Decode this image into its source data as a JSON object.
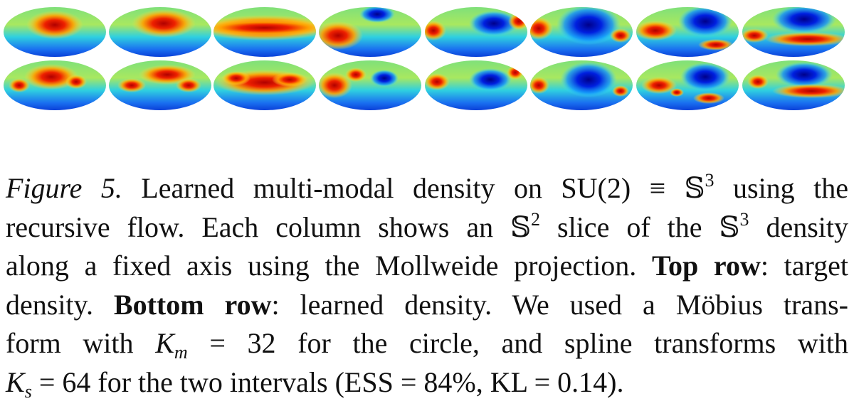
{
  "caption": {
    "lines": [
      [
        {
          "text": "Figure 5.",
          "style": "italic"
        },
        {
          "text": " Learned multi-modal density on SU(2) ≡ 𝕊",
          "style": "normal"
        },
        {
          "text": "3",
          "style": "sup"
        },
        {
          "text": " using the",
          "style": "normal"
        }
      ],
      [
        {
          "text": "recursive flow. Each column shows an 𝕊",
          "style": "normal"
        },
        {
          "text": "2",
          "style": "sup"
        },
        {
          "text": " slice of the 𝕊",
          "style": "normal"
        },
        {
          "text": "3",
          "style": "sup"
        },
        {
          "text": " density",
          "style": "normal"
        }
      ],
      [
        {
          "text": "along a fixed axis using the Mollweide projection. ",
          "style": "normal"
        },
        {
          "text": "Top row",
          "style": "bold"
        },
        {
          "text": ": target",
          "style": "normal"
        }
      ],
      [
        {
          "text": "density. ",
          "style": "normal"
        },
        {
          "text": "Bottom row",
          "style": "bold"
        },
        {
          "text": ": learned density. We used a Möbius trans-",
          "style": "normal"
        }
      ],
      [
        {
          "text": "form with ",
          "style": "normal"
        },
        {
          "text": "K",
          "style": "italic"
        },
        {
          "text": "m",
          "style": "sub"
        },
        {
          "text": " = 32 for the circle, and spline transforms with",
          "style": "normal"
        }
      ],
      [
        {
          "text": "K",
          "style": "italic"
        },
        {
          "text": "s",
          "style": "sub"
        },
        {
          "text": " = 64 for the two intervals (ESS = 84%, KL = 0.14).",
          "style": "normal"
        }
      ]
    ]
  }
}
